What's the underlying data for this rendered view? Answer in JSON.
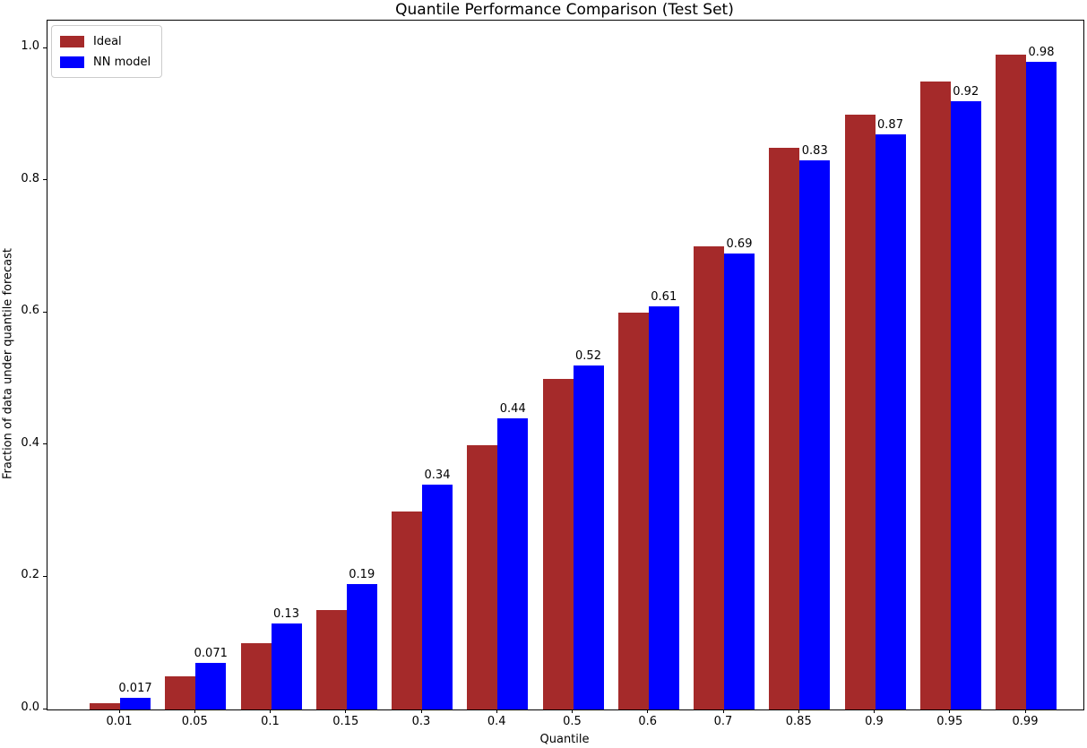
{
  "chart_data": {
    "type": "bar",
    "title": "Quantile Performance Comparison (Test Set)",
    "xlabel": "Quantile",
    "ylabel": "Fraction of data under quantile forecast",
    "categories": [
      "0.01",
      "0.05",
      "0.1",
      "0.15",
      "0.3",
      "0.4",
      "0.5",
      "0.6",
      "0.7",
      "0.85",
      "0.9",
      "0.95",
      "0.99"
    ],
    "series": [
      {
        "name": "Ideal",
        "color": "#a52a2a",
        "values": [
          0.01,
          0.05,
          0.1,
          0.15,
          0.3,
          0.4,
          0.5,
          0.6,
          0.7,
          0.85,
          0.9,
          0.95,
          0.99
        ]
      },
      {
        "name": "NN model",
        "color": "#0000ff",
        "values": [
          0.017,
          0.071,
          0.13,
          0.19,
          0.34,
          0.44,
          0.52,
          0.61,
          0.69,
          0.83,
          0.87,
          0.92,
          0.98
        ]
      }
    ],
    "bar_labels": [
      "0.017",
      "0.071",
      "0.13",
      "0.19",
      "0.34",
      "0.44",
      "0.52",
      "0.61",
      "0.69",
      "0.83",
      "0.87",
      "0.92",
      "0.98"
    ],
    "y_ticks": [
      {
        "label": "0.0",
        "value": 0.0
      },
      {
        "label": "0.2",
        "value": 0.2
      },
      {
        "label": "0.4",
        "value": 0.4
      },
      {
        "label": "0.6",
        "value": 0.6
      },
      {
        "label": "0.8",
        "value": 0.8
      },
      {
        "label": "1.0",
        "value": 1.0
      }
    ],
    "ylim": [
      0,
      1.042
    ],
    "legend_position": "upper left",
    "grid": false
  }
}
